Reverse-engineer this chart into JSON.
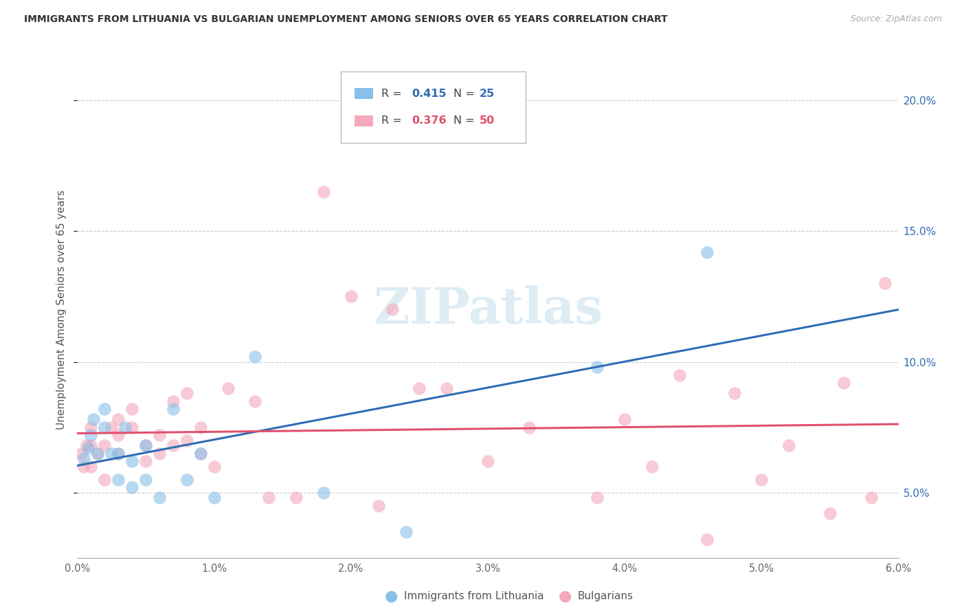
{
  "title": "IMMIGRANTS FROM LITHUANIA VS BULGARIAN UNEMPLOYMENT AMONG SENIORS OVER 65 YEARS CORRELATION CHART",
  "source": "Source: ZipAtlas.com",
  "ylabel": "Unemployment Among Seniors over 65 years",
  "xlim": [
    0.0,
    0.06
  ],
  "ylim": [
    0.025,
    0.215
  ],
  "xticks": [
    0.0,
    0.01,
    0.02,
    0.03,
    0.04,
    0.05,
    0.06
  ],
  "yticks": [
    0.05,
    0.1,
    0.15,
    0.2
  ],
  "legend_r1": "0.415",
  "legend_n1": "25",
  "legend_r2": "0.376",
  "legend_n2": "50",
  "legend_label1": "Immigrants from Lithuania",
  "legend_label2": "Bulgarians",
  "color_blue": "#88bfe8",
  "color_pink": "#f4a8bc",
  "color_blue_dark": "#2e6db4",
  "color_pink_dark": "#e0506e",
  "watermark_color": "#d0e4f0",
  "blue_x": [
    0.0005,
    0.0008,
    0.001,
    0.0012,
    0.0015,
    0.002,
    0.002,
    0.0025,
    0.003,
    0.003,
    0.0035,
    0.004,
    0.004,
    0.005,
    0.005,
    0.006,
    0.007,
    0.008,
    0.009,
    0.01,
    0.013,
    0.018,
    0.024,
    0.038,
    0.046
  ],
  "blue_y": [
    0.063,
    0.067,
    0.072,
    0.078,
    0.065,
    0.075,
    0.082,
    0.065,
    0.065,
    0.055,
    0.075,
    0.052,
    0.062,
    0.055,
    0.068,
    0.048,
    0.082,
    0.055,
    0.065,
    0.048,
    0.102,
    0.05,
    0.035,
    0.098,
    0.142
  ],
  "pink_x": [
    0.0003,
    0.0005,
    0.0007,
    0.001,
    0.001,
    0.001,
    0.0015,
    0.002,
    0.002,
    0.0025,
    0.003,
    0.003,
    0.003,
    0.004,
    0.004,
    0.005,
    0.005,
    0.006,
    0.006,
    0.007,
    0.007,
    0.008,
    0.008,
    0.009,
    0.009,
    0.01,
    0.011,
    0.013,
    0.014,
    0.016,
    0.018,
    0.02,
    0.022,
    0.023,
    0.025,
    0.027,
    0.03,
    0.033,
    0.038,
    0.04,
    0.042,
    0.044,
    0.046,
    0.048,
    0.05,
    0.052,
    0.055,
    0.056,
    0.058,
    0.059
  ],
  "pink_y": [
    0.065,
    0.06,
    0.068,
    0.06,
    0.068,
    0.075,
    0.065,
    0.055,
    0.068,
    0.075,
    0.065,
    0.072,
    0.078,
    0.075,
    0.082,
    0.062,
    0.068,
    0.065,
    0.072,
    0.068,
    0.085,
    0.07,
    0.088,
    0.065,
    0.075,
    0.06,
    0.09,
    0.085,
    0.048,
    0.048,
    0.165,
    0.125,
    0.045,
    0.12,
    0.09,
    0.09,
    0.062,
    0.075,
    0.048,
    0.078,
    0.06,
    0.095,
    0.032,
    0.088,
    0.055,
    0.068,
    0.042,
    0.092,
    0.048,
    0.13
  ]
}
